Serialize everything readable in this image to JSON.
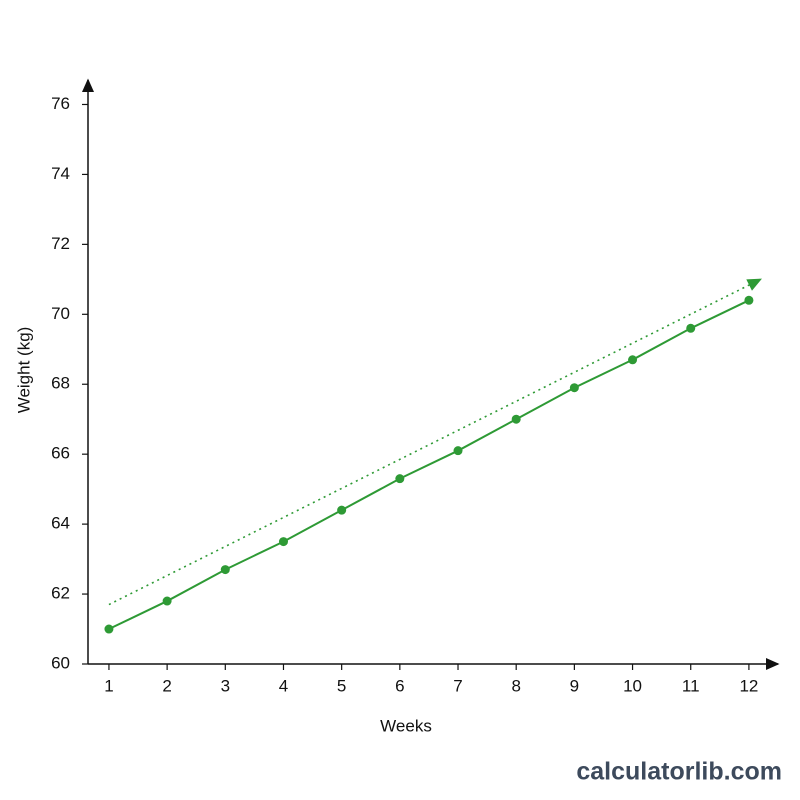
{
  "chart_data": {
    "type": "line",
    "x_label": "Weeks",
    "y_label": "Weight (kg)",
    "x": [
      1,
      2,
      3,
      4,
      5,
      6,
      7,
      8,
      9,
      10,
      11,
      12
    ],
    "series": [
      {
        "color": "#2e9a35",
        "values": [
          61.0,
          61.8,
          62.7,
          63.5,
          64.4,
          65.3,
          66.1,
          67.0,
          67.9,
          68.7,
          69.6,
          70.4
        ]
      }
    ],
    "trend": {
      "color": "#2e9a35",
      "x": [
        1,
        12.2
      ],
      "values": [
        61.7,
        71.0
      ]
    },
    "xlim": [
      0.64,
      12.5
    ],
    "ylim": [
      60,
      76.7
    ],
    "xticks": [
      1,
      2,
      3,
      4,
      5,
      6,
      7,
      8,
      9,
      10,
      11,
      12
    ],
    "yticks": [
      60,
      62,
      64,
      66,
      68,
      70,
      72,
      74,
      76
    ],
    "grid": false
  },
  "watermark": "calculatorlib.com"
}
